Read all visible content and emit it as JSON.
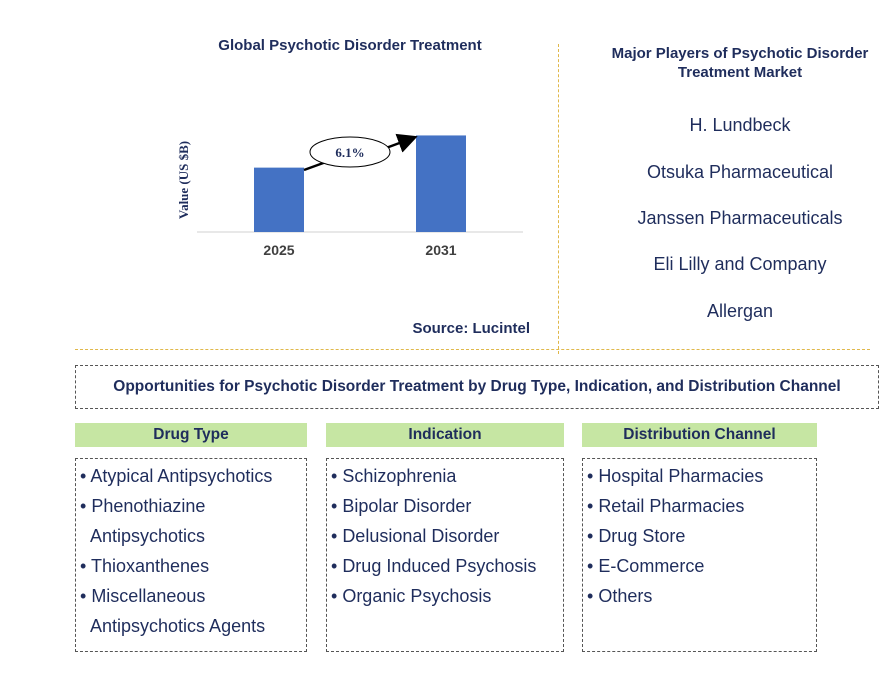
{
  "chart_data": {
    "type": "bar",
    "title": "Global Psychotic Disorder Treatment",
    "ylabel": "Value (US $B)",
    "categories": [
      "2025",
      "2031"
    ],
    "values": [
      1.0,
      1.5
    ],
    "ylim": [
      0,
      1.6
    ],
    "annotation": "6.1%",
    "bar_color": "#4472c4"
  },
  "source": "Source: Lucintel",
  "players": {
    "title": "Major Players of Psychotic Disorder Treatment Market",
    "items": [
      "H. Lundbeck",
      "Otsuka Pharmaceutical",
      "Janssen Pharmaceuticals",
      "Eli Lilly and Company",
      "Allergan"
    ]
  },
  "opportunities": {
    "title": "Opportunities for Psychotic Disorder Treatment by Drug Type, Indication, and Distribution Channel",
    "categories": [
      {
        "title": "Drug Type",
        "items": [
          "Atypical Antipsychotics",
          "Phenothiazine Antipsychotics",
          "Thioxanthenes",
          "Miscellaneous Antipsychotics Agents"
        ]
      },
      {
        "title": "Indication",
        "items": [
          "Schizophrenia",
          "Bipolar Disorder",
          "Delusional Disorder",
          "Drug Induced Psychosis",
          "Organic Psychosis"
        ]
      },
      {
        "title": "Distribution Channel",
        "items": [
          "Hospital Pharmacies",
          "Retail Pharmacies",
          "Drug Store",
          "E-Commerce",
          "Others"
        ]
      }
    ],
    "header_color": "#c6e6a3"
  }
}
